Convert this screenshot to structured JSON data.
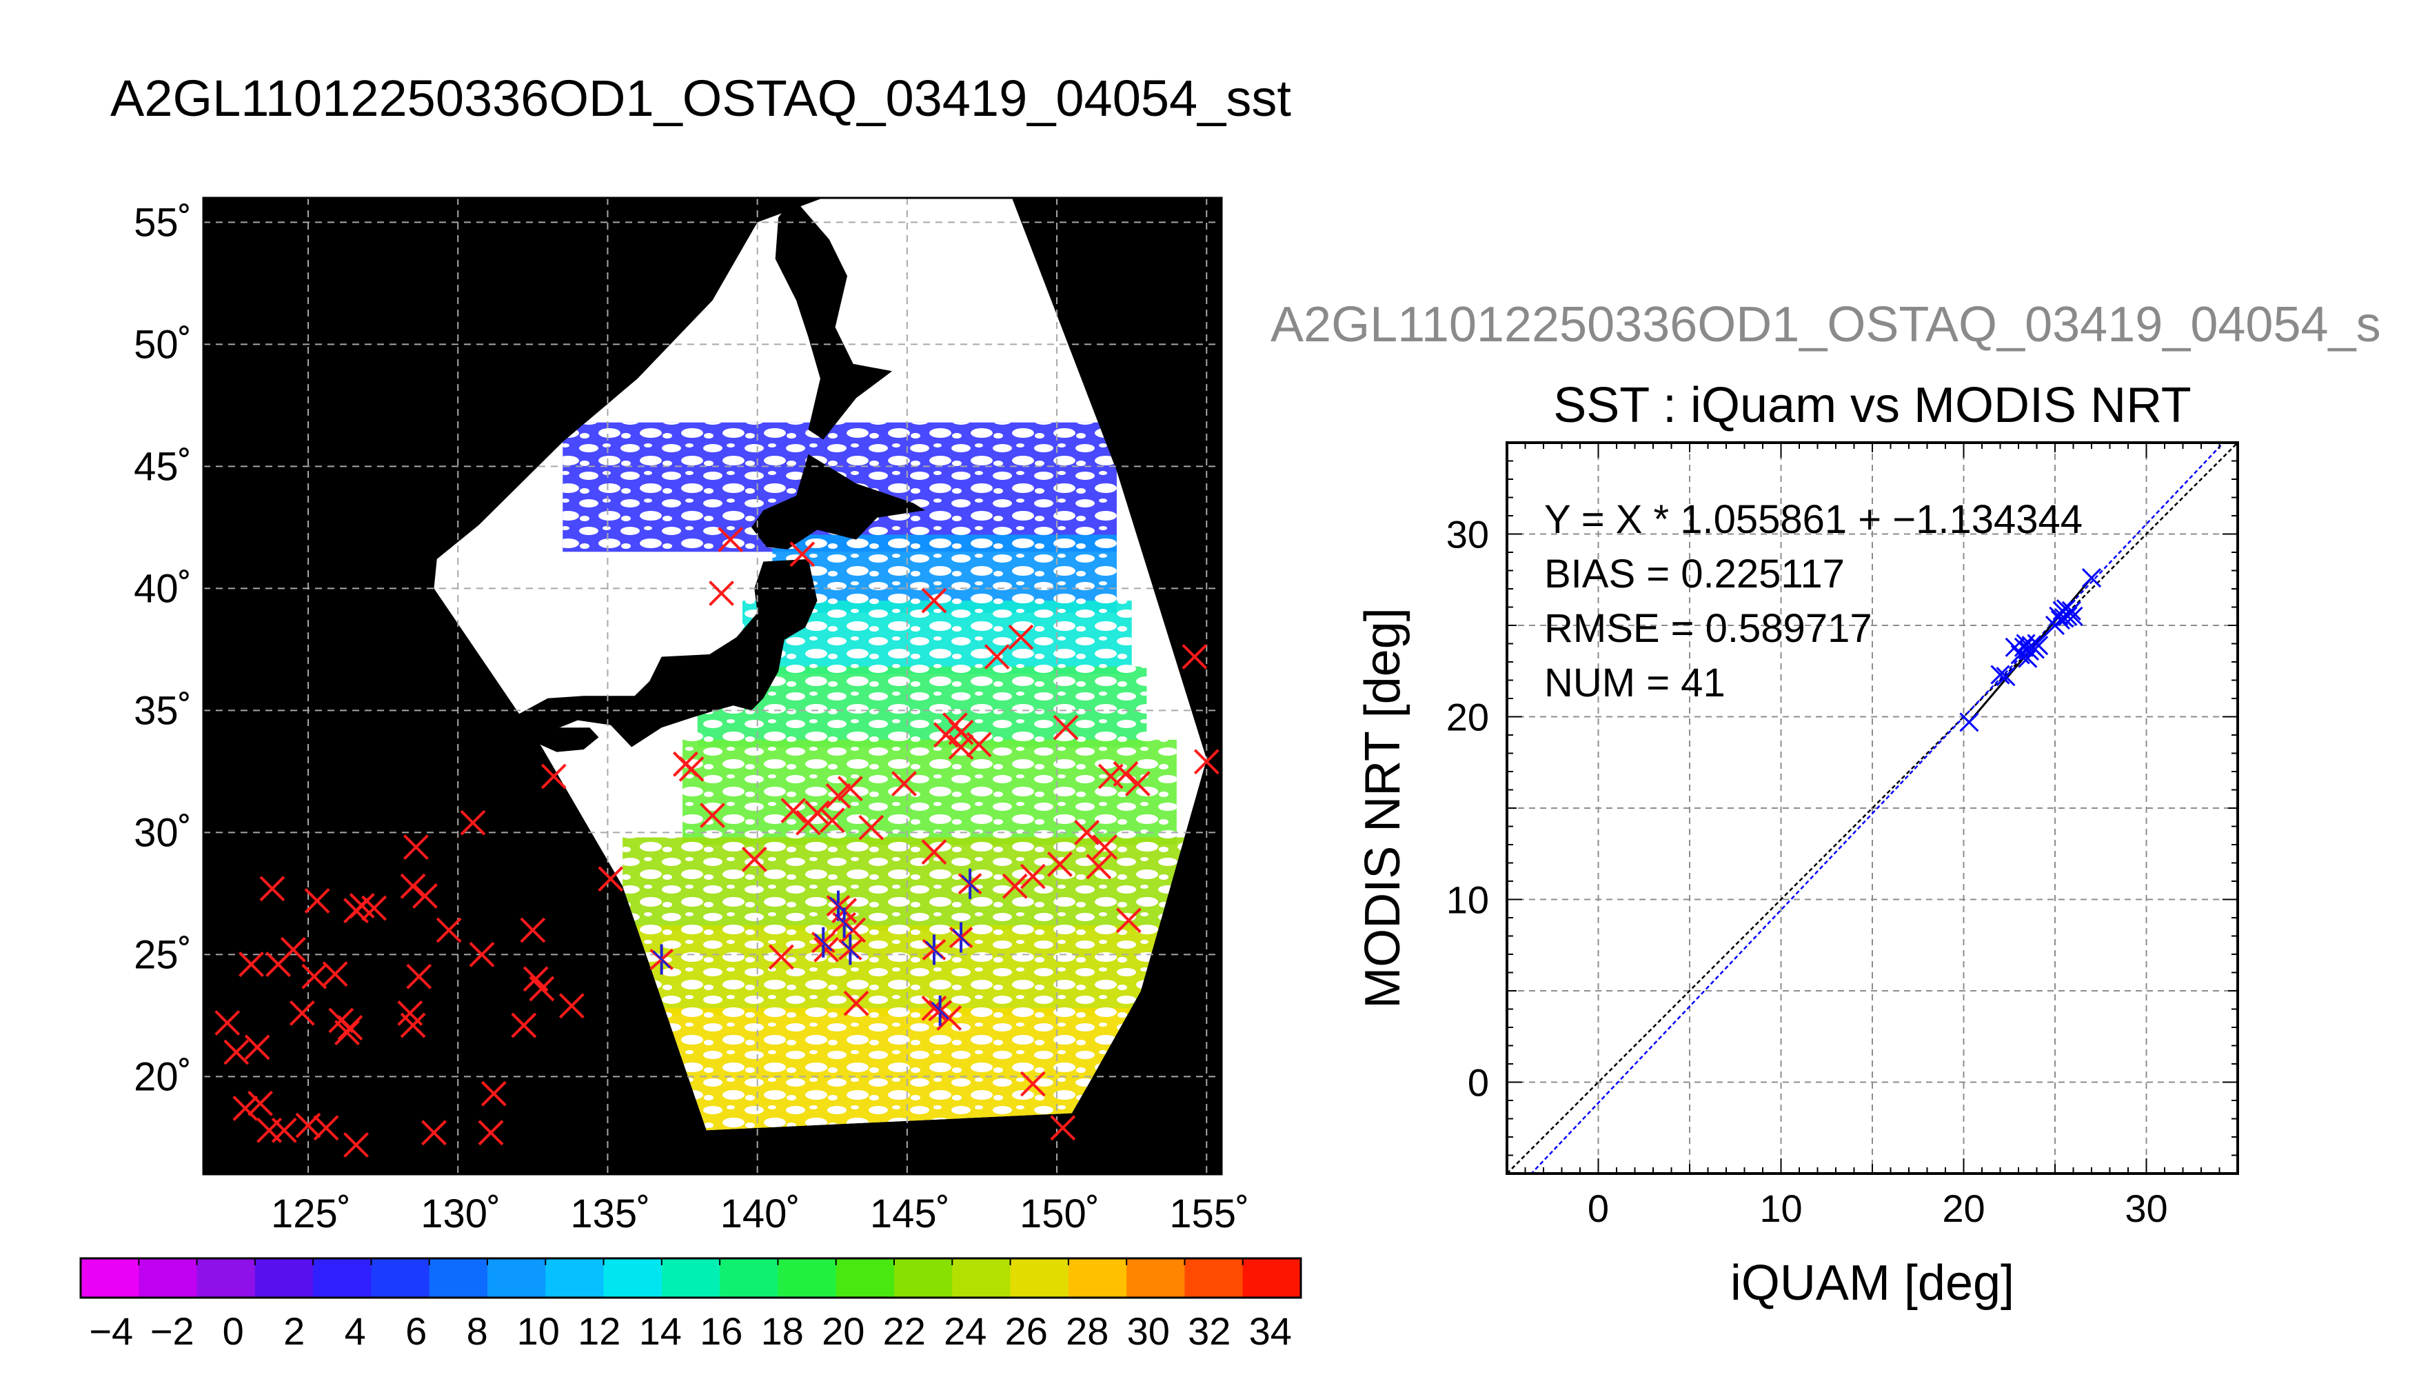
{
  "main_title": "A2GL11012250336OD1_OSTAQ_03419_04054_sst",
  "scatter_overlay_title": "A2GL11012250336OD1_OSTAQ_03419_04054_s",
  "chart_data": [
    {
      "type": "map",
      "lon_ticks": [
        "125˚",
        "130˚",
        "135˚",
        "140˚",
        "145˚",
        "150˚",
        "155˚"
      ],
      "lon_values": [
        125,
        130,
        135,
        140,
        145,
        150,
        155
      ],
      "lat_ticks": [
        "55˚",
        "50˚",
        "45˚",
        "40˚",
        "35˚",
        "30˚",
        "25˚",
        "20˚"
      ],
      "lat_values": [
        55,
        50,
        45,
        40,
        35,
        30,
        25,
        20
      ],
      "lon_range": [
        121.5,
        155.5
      ],
      "lat_range": [
        16,
        56
      ],
      "grid": true,
      "background": "#000000",
      "land_color": "#000000",
      "cloud_color": "#ffffff",
      "swath": [
        [
          138.3,
          17.8
        ],
        [
          135.5,
          27.8
        ],
        [
          132.8,
          33.5
        ],
        [
          129.2,
          40.0
        ],
        [
          129.3,
          41.2
        ],
        [
          130.7,
          42.6
        ],
        [
          133.5,
          46.0
        ],
        [
          136.0,
          48.6
        ],
        [
          138.5,
          51.8
        ],
        [
          140.0,
          55.0
        ],
        [
          142.2,
          56.0
        ],
        [
          148.5,
          56.0
        ],
        [
          152.0,
          44.8
        ],
        [
          155.0,
          33.0
        ],
        [
          152.8,
          23.5
        ],
        [
          151.2,
          20.0
        ],
        [
          150.5,
          18.5
        ]
      ],
      "land_polygons": [
        [
          [
            141.2,
            56.0
          ],
          [
            142.4,
            54.3
          ],
          [
            143.0,
            52.8
          ],
          [
            142.6,
            50.7
          ],
          [
            143.2,
            49.2
          ],
          [
            144.5,
            48.9
          ],
          [
            143.3,
            47.8
          ],
          [
            142.2,
            46.1
          ],
          [
            141.7,
            46.5
          ],
          [
            142.1,
            48.6
          ],
          [
            141.7,
            50.3
          ],
          [
            141.3,
            51.8
          ],
          [
            140.6,
            53.5
          ],
          [
            140.7,
            55.2
          ]
        ],
        [
          [
            141.0,
            41.6
          ],
          [
            140.3,
            41.7
          ],
          [
            139.8,
            42.5
          ],
          [
            140.2,
            43.2
          ],
          [
            141.3,
            43.8
          ],
          [
            141.7,
            45.5
          ],
          [
            143.3,
            44.3
          ],
          [
            145.2,
            43.5
          ],
          [
            145.6,
            43.2
          ],
          [
            144.0,
            42.9
          ],
          [
            143.3,
            42.0
          ],
          [
            142.0,
            42.4
          ],
          [
            141.0,
            41.6
          ]
        ],
        [
          [
            141.7,
            41.2
          ],
          [
            140.2,
            41.1
          ],
          [
            139.9,
            40.0
          ],
          [
            140.0,
            39.0
          ],
          [
            139.3,
            38.0
          ],
          [
            138.4,
            37.3
          ],
          [
            136.8,
            37.2
          ],
          [
            136.4,
            36.2
          ],
          [
            135.9,
            35.6
          ],
          [
            134.2,
            35.6
          ],
          [
            133.0,
            35.5
          ],
          [
            131.8,
            34.7
          ],
          [
            130.9,
            34.0
          ],
          [
            131.2,
            33.8
          ],
          [
            132.6,
            33.9
          ],
          [
            134.0,
            34.6
          ],
          [
            135.1,
            34.4
          ],
          [
            135.8,
            33.5
          ],
          [
            136.8,
            34.3
          ],
          [
            137.8,
            34.7
          ],
          [
            138.6,
            35.0
          ],
          [
            139.2,
            35.2
          ],
          [
            139.8,
            35.0
          ],
          [
            140.2,
            35.5
          ],
          [
            140.7,
            36.6
          ],
          [
            140.9,
            37.9
          ],
          [
            141.6,
            38.4
          ],
          [
            142.0,
            39.5
          ],
          [
            141.7,
            41.2
          ]
        ],
        [
          [
            130.2,
            33.9
          ],
          [
            129.7,
            33.4
          ],
          [
            129.8,
            32.6
          ],
          [
            130.2,
            31.4
          ],
          [
            130.7,
            31.0
          ],
          [
            131.3,
            31.4
          ],
          [
            131.9,
            32.5
          ],
          [
            131.6,
            33.4
          ],
          [
            131.0,
            33.9
          ]
        ],
        [
          [
            132.2,
            33.9
          ],
          [
            133.3,
            33.3
          ],
          [
            134.2,
            33.4
          ],
          [
            134.7,
            33.9
          ],
          [
            134.4,
            34.3
          ],
          [
            133.4,
            34.3
          ]
        ],
        [
          [
            154.0,
            47.0
          ],
          [
            155.5,
            47.5
          ],
          [
            155.5,
            46.5
          ],
          [
            154.5,
            46.2
          ]
        ]
      ],
      "sst_bands": [
        {
          "lat": [
            41.5,
            46.8
          ],
          "lon": [
            133.5,
            152.0
          ],
          "color": "#3a3aff"
        },
        {
          "lat": [
            39.0,
            42.2
          ],
          "lon": [
            140.5,
            152.0
          ],
          "color": "#0c98ff"
        },
        {
          "lat": [
            36.5,
            39.5
          ],
          "lon": [
            139.5,
            152.5
          ],
          "color": "#10e8d8"
        },
        {
          "lat": [
            33.5,
            36.8
          ],
          "lon": [
            138.0,
            153.0
          ],
          "color": "#38f070"
        },
        {
          "lat": [
            29.5,
            33.8
          ],
          "lon": [
            137.5,
            154.0
          ],
          "color": "#6cf040"
        },
        {
          "lat": [
            26.0,
            29.8
          ],
          "lon": [
            135.5,
            154.5
          ],
          "color": "#9ee012"
        },
        {
          "lat": [
            22.5,
            26.2
          ],
          "lon": [
            135.0,
            154.5
          ],
          "color": "#c8e000"
        },
        {
          "lat": [
            17.5,
            22.8
          ],
          "lon": [
            135.0,
            154.0
          ],
          "color": "#f2dc00"
        }
      ],
      "red_markers": [
        [
          122.3,
          22.2
        ],
        [
          122.6,
          21.0
        ],
        [
          122.9,
          18.7
        ],
        [
          123.1,
          24.6
        ],
        [
          123.3,
          21.2
        ],
        [
          123.4,
          18.9
        ],
        [
          123.7,
          17.8
        ],
        [
          123.8,
          27.7
        ],
        [
          124.0,
          24.6
        ],
        [
          124.2,
          17.8
        ],
        [
          124.5,
          25.2
        ],
        [
          124.8,
          22.6
        ],
        [
          125.0,
          18.0
        ],
        [
          125.2,
          24.1
        ],
        [
          125.3,
          27.2
        ],
        [
          125.6,
          17.9
        ],
        [
          125.9,
          24.2
        ],
        [
          126.1,
          22.3
        ],
        [
          126.3,
          21.8
        ],
        [
          126.4,
          22.0
        ],
        [
          126.6,
          26.8
        ],
        [
          126.8,
          27.0
        ],
        [
          126.6,
          17.2
        ],
        [
          127.2,
          26.9
        ],
        [
          128.4,
          22.6
        ],
        [
          128.5,
          22.1
        ],
        [
          128.5,
          27.8
        ],
        [
          128.6,
          29.4
        ],
        [
          128.7,
          24.1
        ],
        [
          128.9,
          27.4
        ],
        [
          129.2,
          17.7
        ],
        [
          129.7,
          26.0
        ],
        [
          130.5,
          30.4
        ],
        [
          130.8,
          25.0
        ],
        [
          131.2,
          19.3
        ],
        [
          131.1,
          17.7
        ],
        [
          132.2,
          22.1
        ],
        [
          132.5,
          26.0
        ],
        [
          132.6,
          24.0
        ],
        [
          132.8,
          23.6
        ],
        [
          133.2,
          32.3
        ],
        [
          133.8,
          22.9
        ],
        [
          135.1,
          28.1
        ],
        [
          137.6,
          32.8
        ],
        [
          137.8,
          32.6
        ],
        [
          138.5,
          30.7
        ],
        [
          138.8,
          39.8
        ],
        [
          139.1,
          42.0
        ],
        [
          139.9,
          28.9
        ],
        [
          140.8,
          24.9
        ],
        [
          141.2,
          30.9
        ],
        [
          141.5,
          41.4
        ],
        [
          141.7,
          30.4
        ],
        [
          142.0,
          30.8
        ],
        [
          142.3,
          25.2
        ],
        [
          142.5,
          30.5
        ],
        [
          142.7,
          31.5
        ],
        [
          142.9,
          26.8
        ],
        [
          143.1,
          31.8
        ],
        [
          143.2,
          26.0
        ],
        [
          143.3,
          23.0
        ],
        [
          143.8,
          30.2
        ],
        [
          144.9,
          32.0
        ],
        [
          145.9,
          39.5
        ],
        [
          145.9,
          29.2
        ],
        [
          145.9,
          22.8
        ],
        [
          146.3,
          34.0
        ],
        [
          146.4,
          22.4
        ],
        [
          146.6,
          34.4
        ],
        [
          146.8,
          33.5
        ],
        [
          146.8,
          34.1
        ],
        [
          147.4,
          33.6
        ],
        [
          148.0,
          37.2
        ],
        [
          148.6,
          27.8
        ],
        [
          148.8,
          38.0
        ],
        [
          149.2,
          28.2
        ],
        [
          149.2,
          19.7
        ],
        [
          150.1,
          28.7
        ],
        [
          150.2,
          17.9
        ],
        [
          150.3,
          34.3
        ],
        [
          151.0,
          30.0
        ],
        [
          151.4,
          28.6
        ],
        [
          151.6,
          29.4
        ],
        [
          151.8,
          32.3
        ],
        [
          152.3,
          32.4
        ],
        [
          152.4,
          26.4
        ],
        [
          152.7,
          32.0
        ],
        [
          154.6,
          37.2
        ],
        [
          155.0,
          32.9
        ]
      ],
      "blue_markers": [
        [
          136.8,
          24.8
        ],
        [
          142.2,
          25.5
        ],
        [
          142.7,
          27.0
        ],
        [
          142.9,
          26.3
        ],
        [
          143.1,
          25.2
        ],
        [
          145.9,
          25.2
        ],
        [
          146.1,
          22.7
        ],
        [
          146.8,
          25.7
        ],
        [
          147.1,
          27.9
        ]
      ],
      "colorbar": {
        "ticks": [
          "−4",
          "−2",
          "0",
          "2",
          "4",
          "6",
          "8",
          "10",
          "12",
          "14",
          "16",
          "18",
          "20",
          "22",
          "24",
          "26",
          "28",
          "30",
          "32",
          "34"
        ],
        "range": [
          -5,
          35
        ],
        "colors": [
          "#ea00f6",
          "#c000f0",
          "#9010ea",
          "#5810ee",
          "#3020ff",
          "#1b3cff",
          "#0d6cff",
          "#0b98ff",
          "#06c0ff",
          "#00e6f0",
          "#00f0b4",
          "#10f070",
          "#22f040",
          "#48e810",
          "#88e000",
          "#b4e000",
          "#e2dc00",
          "#ffc000",
          "#ff8400",
          "#ff4a00",
          "#ff1400"
        ]
      }
    },
    {
      "type": "scatter",
      "title": "SST : iQuam vs MODIS NRT",
      "xlabel": "iQUAM [deg]",
      "ylabel": "MODIS NRT [deg]",
      "xlim": [
        -5,
        35
      ],
      "ylim": [
        -5,
        35
      ],
      "x_ticks": [
        "0",
        "10",
        "20",
        "30"
      ],
      "x_tick_values": [
        0,
        10,
        20,
        30
      ],
      "y_ticks": [
        "0",
        "10",
        "20",
        "30"
      ],
      "y_tick_values": [
        0,
        10,
        20,
        30
      ],
      "grid": true,
      "annotations": [
        "Y = X * 1.055861 + −1.134344",
        "BIAS = 0.225117",
        "RMSE = 0.589717",
        "NUM = 41"
      ],
      "fit": {
        "slope": 1.055861,
        "intercept": -1.134344,
        "color": "#0000ff"
      },
      "identity_line_color": "#000000",
      "marker_color": "#0000ff",
      "x": [
        20.3,
        22.0,
        22.3,
        22.8,
        23.1,
        23.3,
        23.4,
        23.5,
        23.6,
        23.7,
        23.9,
        24.0,
        24.1,
        25.0,
        25.2,
        25.3,
        25.4,
        25.5,
        25.6,
        25.7,
        25.8,
        25.9,
        26.0,
        27.0
      ],
      "y": [
        19.7,
        22.3,
        22.2,
        23.8,
        23.4,
        23.8,
        24.0,
        23.2,
        23.6,
        23.9,
        23.7,
        24.0,
        23.9,
        25.0,
        25.5,
        25.3,
        25.8,
        25.4,
        25.9,
        25.5,
        25.7,
        25.8,
        25.5,
        27.6
      ]
    }
  ]
}
